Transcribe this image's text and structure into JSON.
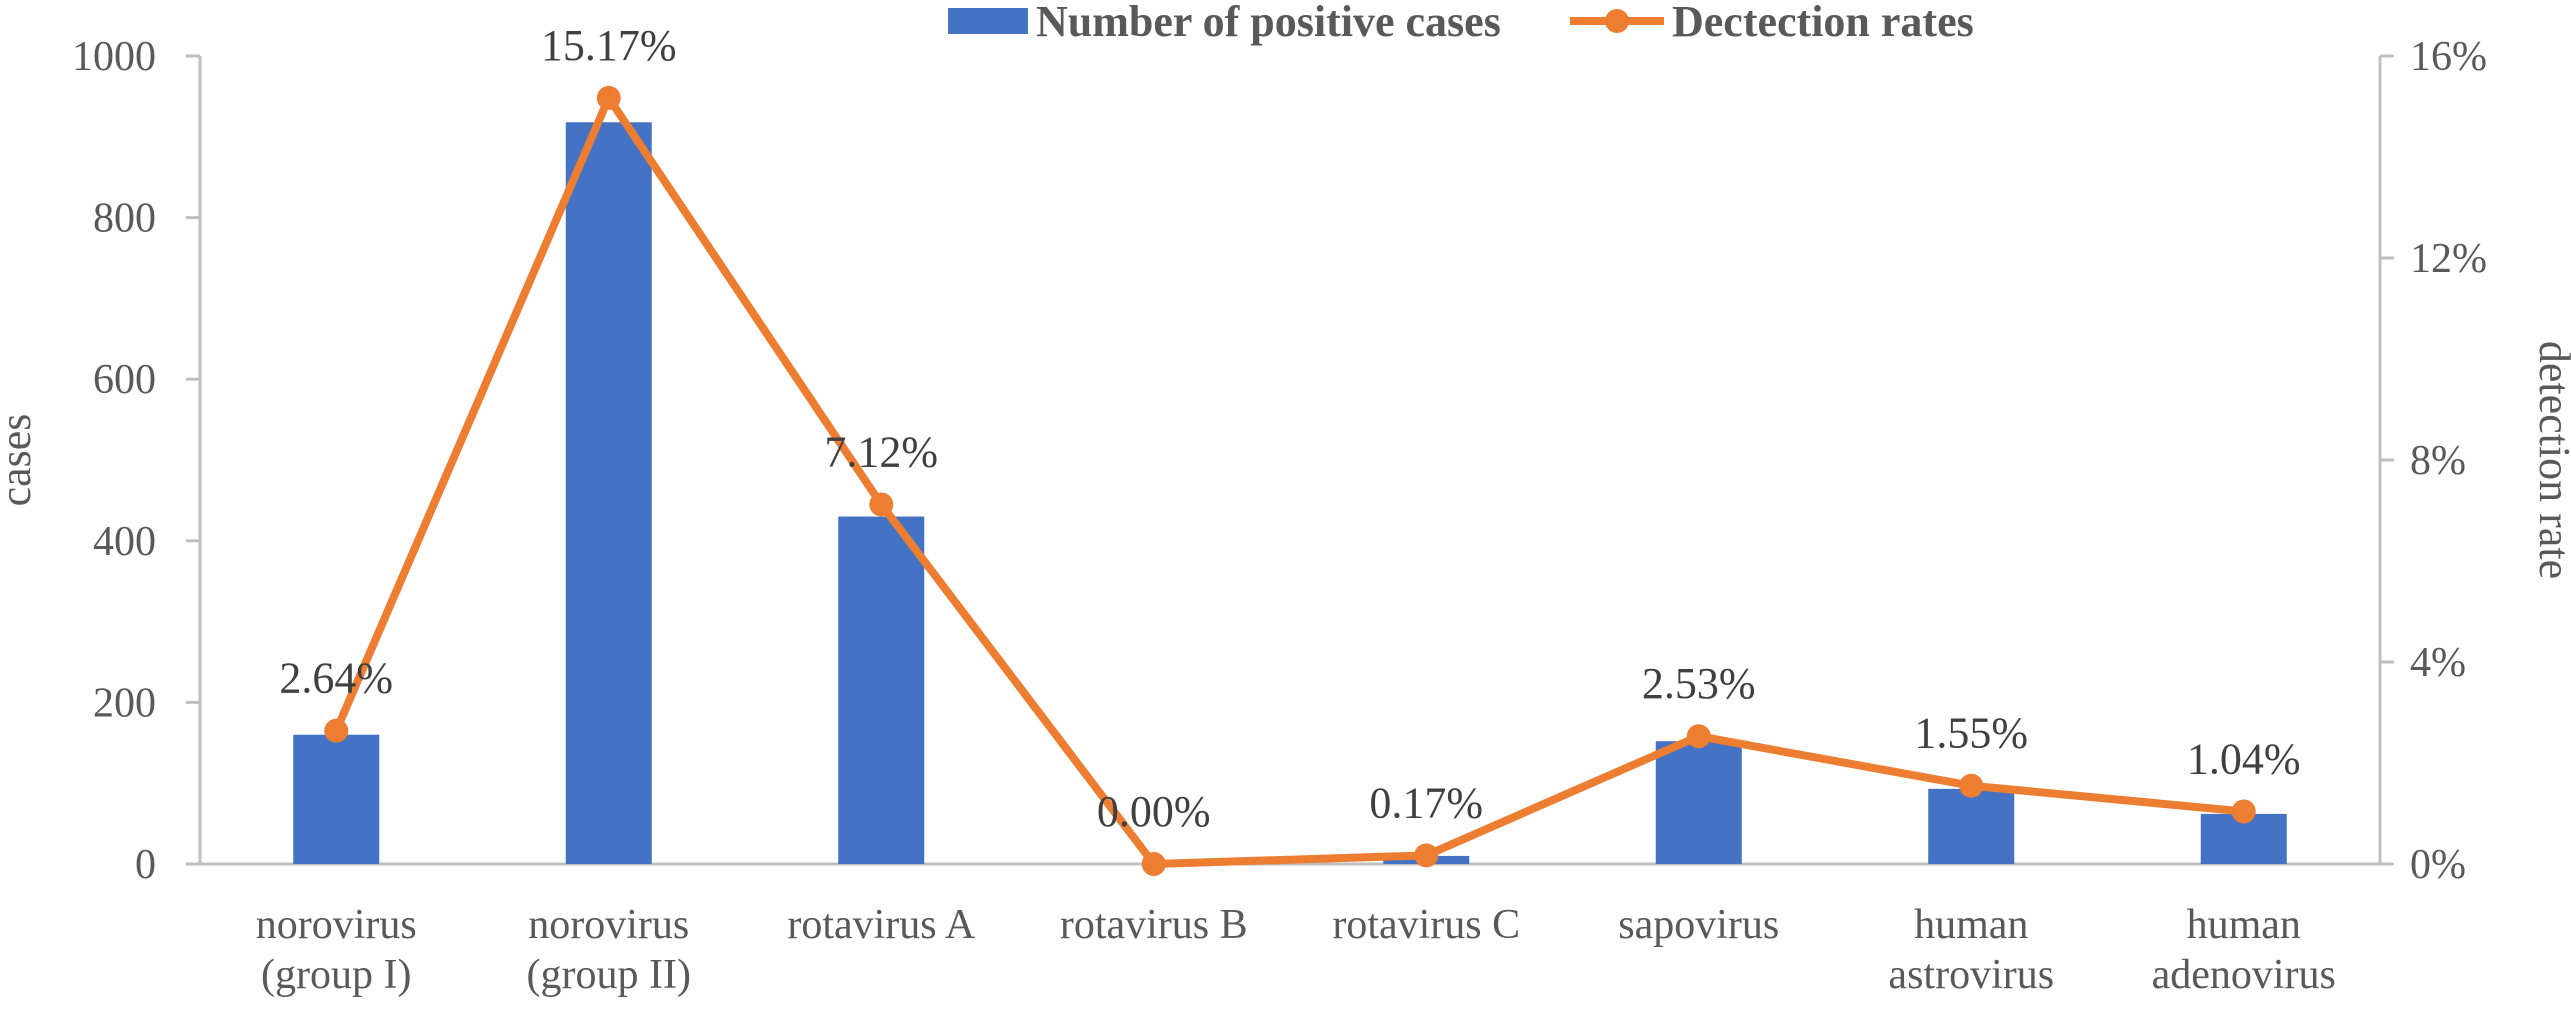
{
  "chart_data": {
    "type": "bar+line",
    "categories": [
      [
        "norovirus",
        "(group I)"
      ],
      [
        "norovirus",
        "(group II)"
      ],
      [
        "rotavirus A"
      ],
      [
        "rotavirus B"
      ],
      [
        "rotavirus C"
      ],
      [
        "sapovirus"
      ],
      [
        "human",
        "astrovirus"
      ],
      [
        "human",
        "adenovirus"
      ]
    ],
    "series": [
      {
        "name": "Number of positive cases",
        "type": "bar",
        "axis": "left",
        "color": "#4472c4",
        "values": [
          160,
          918,
          430,
          0,
          10,
          152,
          93,
          62
        ]
      },
      {
        "name": "Dectection rates",
        "type": "line",
        "axis": "right",
        "color": "#ed7d31",
        "values": [
          2.64,
          15.17,
          7.12,
          0.0,
          0.17,
          2.53,
          1.55,
          1.04
        ],
        "labels": [
          "2.64%",
          "15.17%",
          "7.12%",
          "0.00%",
          "0.17%",
          "2.53%",
          "1.55%",
          "1.04%"
        ]
      }
    ],
    "y_left": {
      "label": "cases",
      "ylim": [
        0,
        1000
      ],
      "ticks": [
        "0",
        "200",
        "400",
        "600",
        "800",
        "1000"
      ]
    },
    "y_right": {
      "label": "detection rate",
      "ylim": [
        0,
        16
      ],
      "ticks": [
        "0%",
        "4%",
        "8%",
        "12%",
        "16%"
      ]
    },
    "legend_position": "top-center",
    "grid": false
  }
}
